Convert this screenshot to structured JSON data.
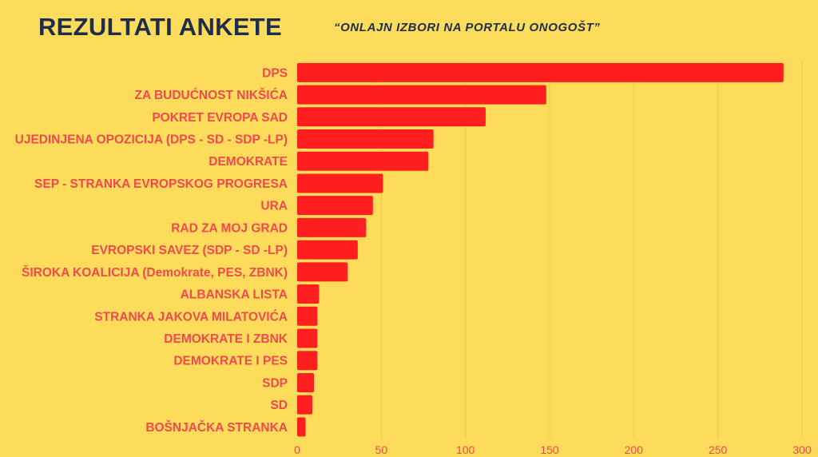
{
  "header": {
    "title": "REZULTATI ANKETE",
    "subtitle": "“ONLAJN IZBORI NA PORTALU ONOGOŠT”"
  },
  "colors": {
    "background": "#FDDC5C",
    "bar": "#FF1F1F",
    "label": "#F0494F",
    "title": "#1F2D4D"
  },
  "chart_data": {
    "type": "bar",
    "orientation": "horizontal",
    "title": "REZULTATI ANKETE",
    "subtitle": "“ONLAJN IZBORI NA PORTALU ONOGOŠT”",
    "xlabel": "",
    "ylabel": "",
    "xlim": [
      0,
      300
    ],
    "ticks": [
      0,
      50,
      100,
      150,
      200,
      250,
      300
    ],
    "grid": true,
    "legend": "none",
    "categories": [
      "DPS",
      "ZA BUDUĆNOST NIKŠIĆA",
      "POKRET EVROPA SAD",
      "UJEDINJENA OPOZICIJA (DPS - SD - SDP -LP)",
      "DEMOKRATE",
      "SEP - STRANKA EVROPSKOG PROGRESA",
      "URA",
      "RAD ZA MOJ GRAD",
      "EVROPSKI SAVEZ (SDP - SD -LP)",
      "ŠIROKA KOALICIJA (Demokrate, PES, ZBNK)",
      "ALBANSKA LISTA",
      "STRANKA JAKOVA MILATOVIĆA",
      "DEMOKRATE I ZBNK",
      "DEMOKRATE I PES",
      "SDP",
      "SD",
      "BOŠNJAČKA STRANKA"
    ],
    "values": [
      289,
      148,
      112,
      81,
      78,
      51,
      45,
      41,
      36,
      30,
      13,
      12,
      12,
      12,
      10,
      9,
      5
    ]
  }
}
